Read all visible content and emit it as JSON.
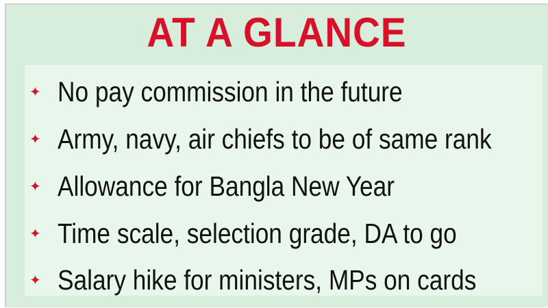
{
  "title": "AT A GLANCE",
  "accent_color": "#d8102a",
  "background_color": "#d8eedc",
  "bullet_icon": "four-point-star",
  "items": [
    {
      "text": "No pay commission in the future"
    },
    {
      "text": "Army, navy, air chiefs to be of same rank"
    },
    {
      "text": "Allowance for Bangla New Year"
    },
    {
      "text": "Time scale, selection grade, DA to go"
    },
    {
      "text": "Salary hike for ministers, MPs on cards"
    }
  ]
}
